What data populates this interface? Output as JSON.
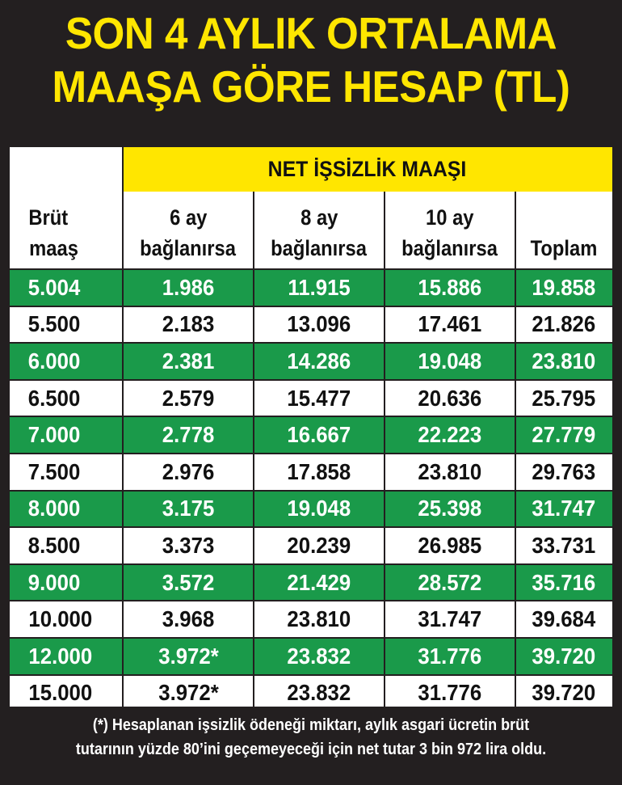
{
  "title": {
    "line1": "SON 4 AYLIK ORTALAMA",
    "line2": "MAAŞA GÖRE HESAP (TL)"
  },
  "table": {
    "group_header": "NET İŞSİZLİK MAAŞI",
    "columns": {
      "brut": [
        "Brüt",
        "maaş"
      ],
      "six": [
        "6 ay",
        "bağlanırsa"
      ],
      "eight": [
        "8 ay",
        "bağlanırsa"
      ],
      "ten": [
        "10 ay",
        "bağlanırsa"
      ],
      "total": [
        "Toplam"
      ]
    },
    "rows": [
      [
        "5.004",
        "1.986",
        "11.915",
        "15.886",
        "19.858"
      ],
      [
        "5.500",
        "2.183",
        "13.096",
        "17.461",
        "21.826"
      ],
      [
        "6.000",
        "2.381",
        "14.286",
        "19.048",
        "23.810"
      ],
      [
        "6.500",
        "2.579",
        "15.477",
        "20.636",
        "25.795"
      ],
      [
        "7.000",
        "2.778",
        "16.667",
        "22.223",
        "27.779"
      ],
      [
        "7.500",
        "2.976",
        "17.858",
        "23.810",
        "29.763"
      ],
      [
        "8.000",
        "3.175",
        "19.048",
        "25.398",
        "31.747"
      ],
      [
        "8.500",
        "3.373",
        "20.239",
        "26.985",
        "33.731"
      ],
      [
        "9.000",
        "3.572",
        "21.429",
        "28.572",
        "35.716"
      ],
      [
        "10.000",
        "3.968",
        "23.810",
        "31.747",
        "39.684"
      ],
      [
        "12.000",
        "3.972*",
        "23.832",
        "31.776",
        "39.720"
      ],
      [
        "15.000",
        "3.972*",
        "23.832",
        "31.776",
        "39.720"
      ]
    ],
    "colors": {
      "green_row": "#1a9a4a",
      "yellow": "#ffe600",
      "dark": "#231f20"
    }
  },
  "footnote": {
    "line1": "(*) Hesaplanan işsizlik ödeneği miktarı, aylık asgari ücretin brüt",
    "line2": "tutarının yüzde 80’ini geçemeyeceği için net tutar 3 bin 972 lira oldu."
  }
}
